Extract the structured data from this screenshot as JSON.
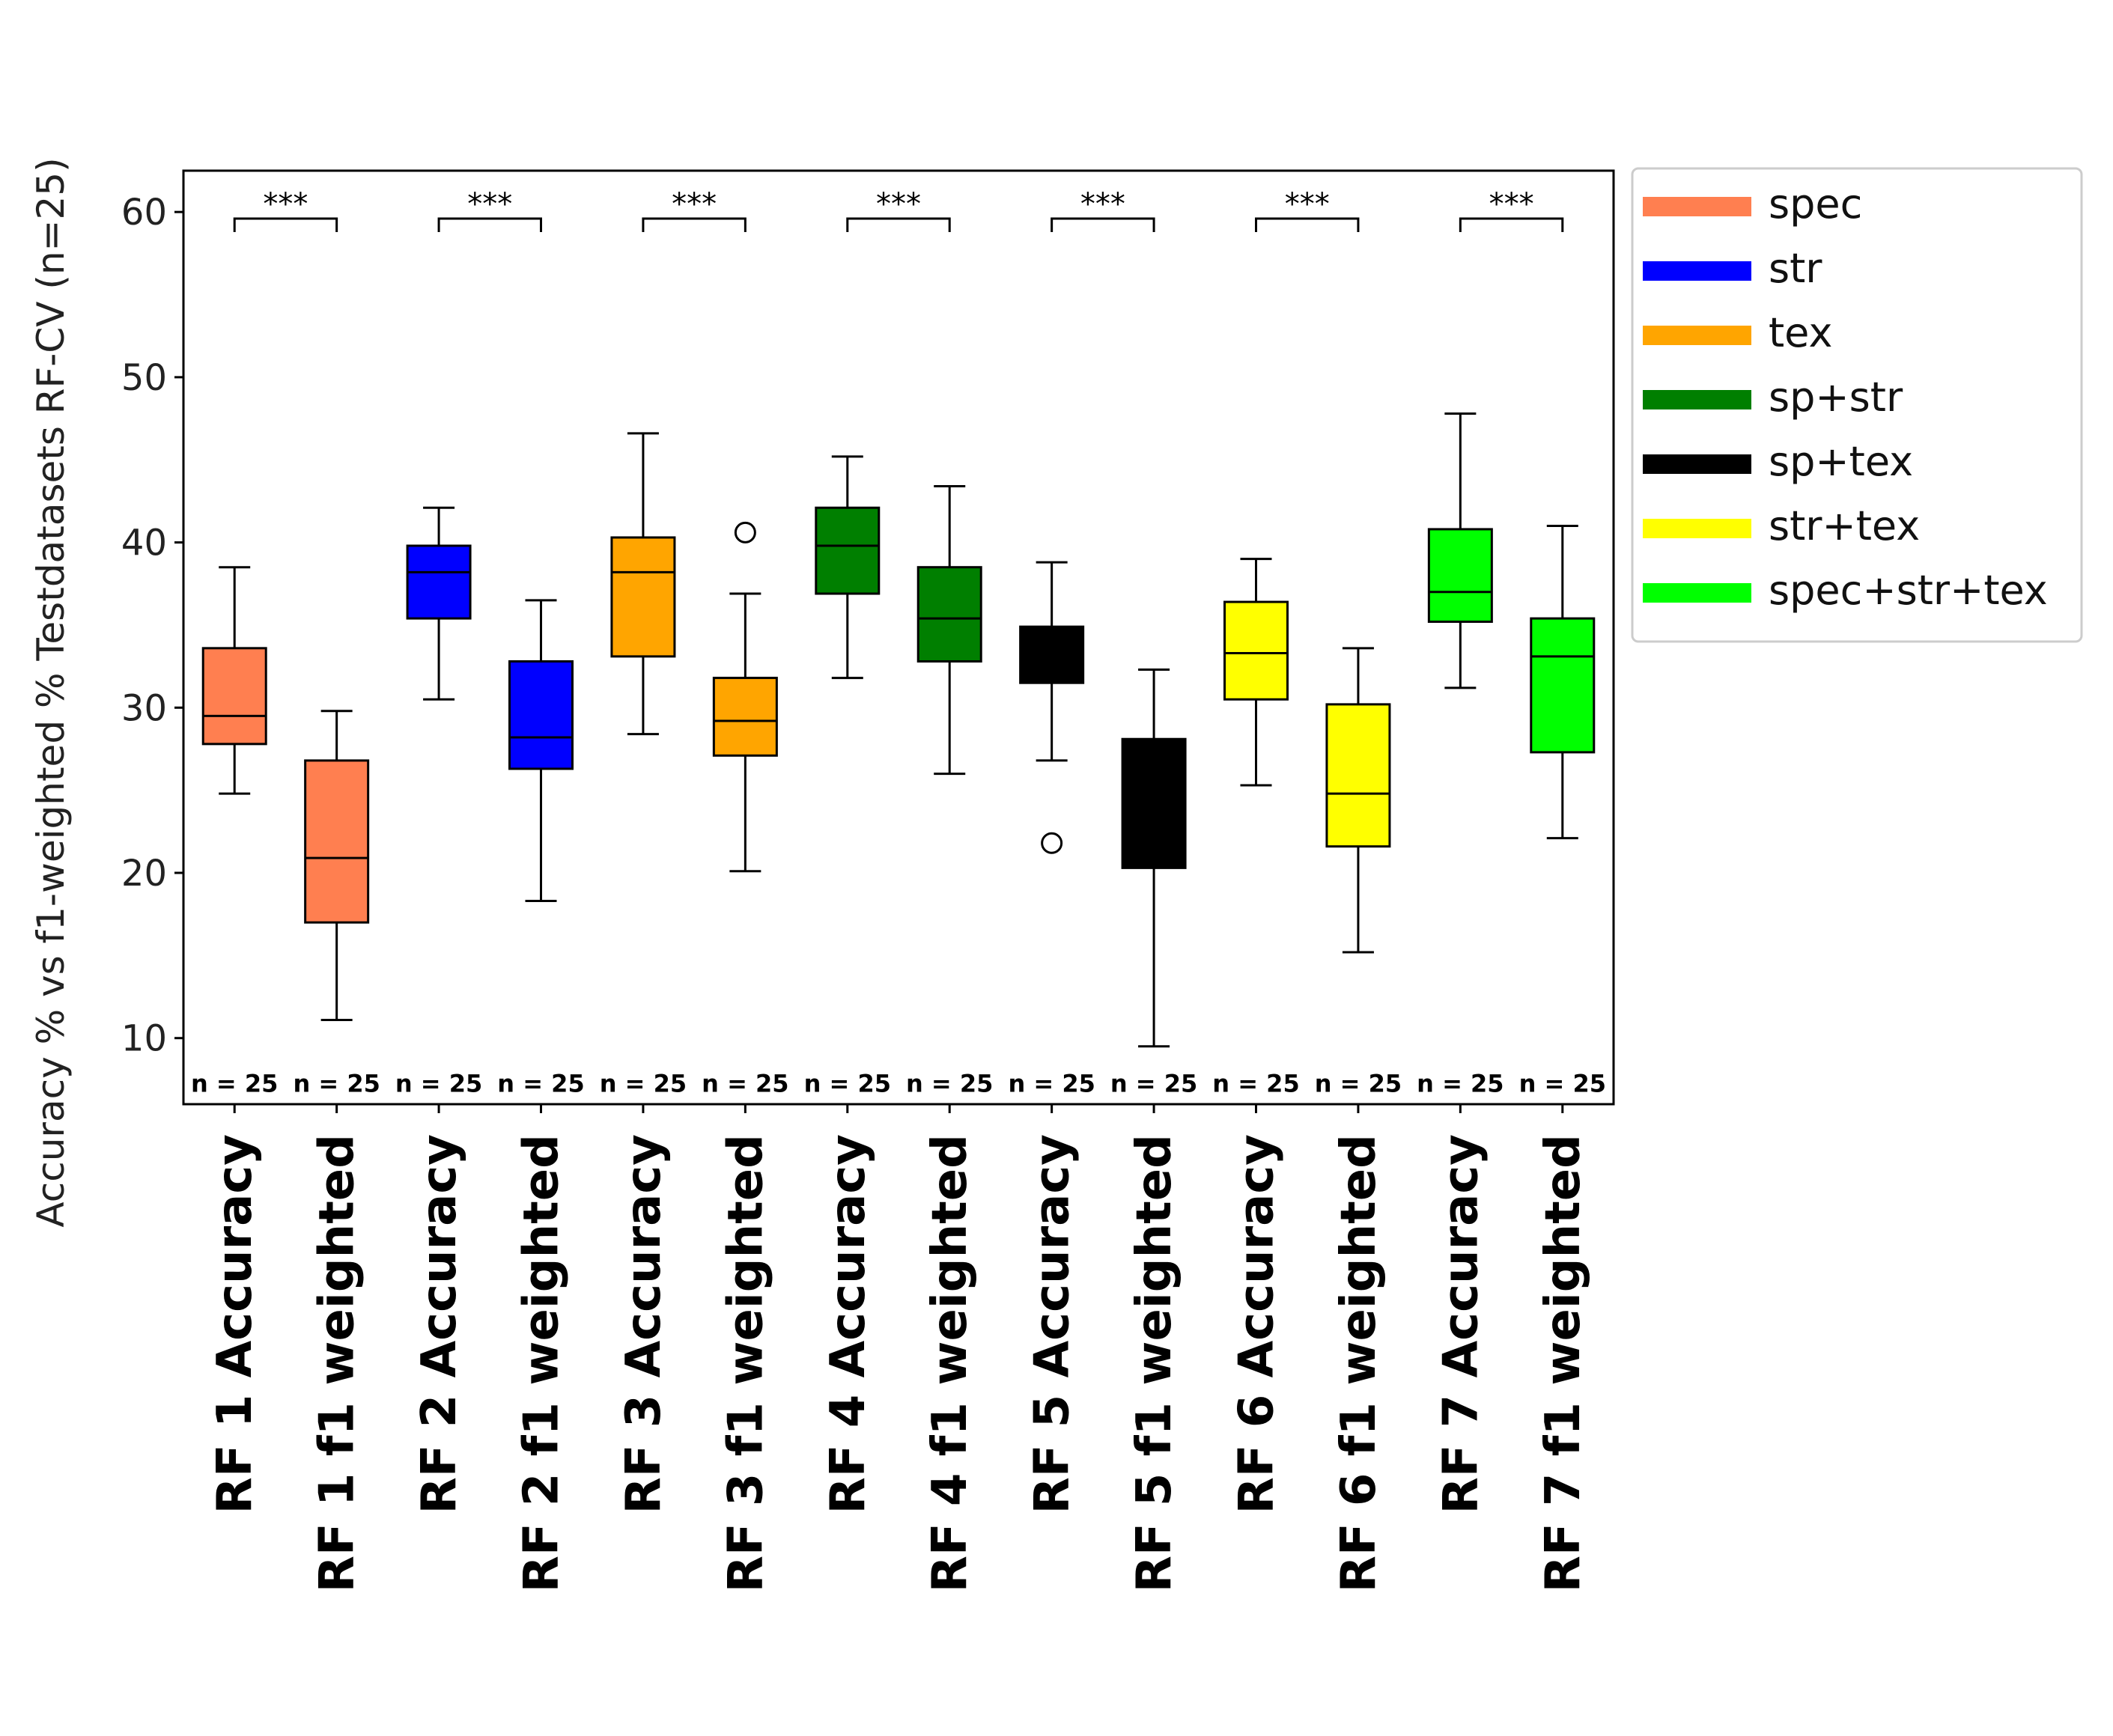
{
  "colors": {
    "spec": "#ff7f50",
    "str": "#0000ff",
    "tex": "#ffa500",
    "sp+str": "#007f00",
    "sp+tex": "#000000",
    "str+tex": "#ffff00",
    "spec+str+tex": "#00ff00"
  },
  "chart_data": {
    "type": "box",
    "title": "",
    "xlabel": "",
    "ylabel": "Accuracy % vs f1-weighted % Testdatasets RF-CV (n=25)",
    "ylim": [
      6,
      62.5
    ],
    "yticks": [
      10,
      20,
      30,
      40,
      50,
      60
    ],
    "grid": false,
    "legend_position": "outside-right",
    "legend": [
      {
        "label": "spec",
        "color": "#ff7f50"
      },
      {
        "label": "str",
        "color": "#0000ff"
      },
      {
        "label": "tex",
        "color": "#ffa500"
      },
      {
        "label": "sp+str",
        "color": "#007f00"
      },
      {
        "label": "sp+tex",
        "color": "#000000"
      },
      {
        "label": "str+tex",
        "color": "#ffff00"
      },
      {
        "label": "spec+str+tex",
        "color": "#00ff00"
      }
    ],
    "categories": [
      "RF 1 Accuracy",
      "RF 1 f1 weighted",
      "RF 2 Accuracy",
      "RF 2 f1 weighted",
      "RF 3 Accuracy",
      "RF 3 f1 weighted",
      "RF 4 Accuracy",
      "RF 4 f1 weighted",
      "RF 5 Accuracy",
      "RF 5 f1 weighted",
      "RF 6 Accuracy",
      "RF 6 f1 weighted",
      "RF 7 Accuracy",
      "RF 7 f1 weighted"
    ],
    "boxes": [
      {
        "group": "spec",
        "whislo": 24.8,
        "q1": 27.8,
        "med": 29.5,
        "q3": 33.6,
        "whishi": 38.5,
        "fliers": []
      },
      {
        "group": "spec",
        "whislo": 11.1,
        "q1": 17.0,
        "med": 20.9,
        "q3": 26.8,
        "whishi": 29.8,
        "fliers": []
      },
      {
        "group": "str",
        "whislo": 30.5,
        "q1": 35.4,
        "med": 38.2,
        "q3": 39.8,
        "whishi": 42.1,
        "fliers": []
      },
      {
        "group": "str",
        "whislo": 18.3,
        "q1": 26.3,
        "med": 28.2,
        "q3": 32.8,
        "whishi": 36.5,
        "fliers": []
      },
      {
        "group": "tex",
        "whislo": 28.4,
        "q1": 33.1,
        "med": 38.2,
        "q3": 40.3,
        "whishi": 46.6,
        "fliers": []
      },
      {
        "group": "tex",
        "whislo": 20.1,
        "q1": 27.1,
        "med": 29.2,
        "q3": 31.8,
        "whishi": 36.9,
        "fliers": [
          40.6
        ]
      },
      {
        "group": "sp+str",
        "whislo": 31.8,
        "q1": 36.9,
        "med": 39.8,
        "q3": 42.1,
        "whishi": 45.2,
        "fliers": []
      },
      {
        "group": "sp+str",
        "whislo": 26.0,
        "q1": 32.8,
        "med": 35.4,
        "q3": 38.5,
        "whishi": 43.4,
        "fliers": []
      },
      {
        "group": "sp+tex",
        "whislo": 26.8,
        "q1": 31.5,
        "med": 33.1,
        "q3": 34.9,
        "whishi": 38.8,
        "fliers": [
          21.8
        ]
      },
      {
        "group": "sp+tex",
        "whislo": 9.5,
        "q1": 20.3,
        "med": 23.7,
        "q3": 28.1,
        "whishi": 32.3,
        "fliers": []
      },
      {
        "group": "str+tex",
        "whislo": 25.3,
        "q1": 30.5,
        "med": 33.3,
        "q3": 36.4,
        "whishi": 39.0,
        "fliers": []
      },
      {
        "group": "str+tex",
        "whislo": 15.2,
        "q1": 21.6,
        "med": 24.8,
        "q3": 30.2,
        "whishi": 33.6,
        "fliers": []
      },
      {
        "group": "spec+str+tex",
        "whislo": 31.2,
        "q1": 35.2,
        "med": 37.0,
        "q3": 40.8,
        "whishi": 47.8,
        "fliers": []
      },
      {
        "group": "spec+str+tex",
        "whislo": 22.1,
        "q1": 27.3,
        "med": 33.1,
        "q3": 35.4,
        "whishi": 41.0,
        "fliers": []
      }
    ],
    "sample_size_labels": [
      "n = 25",
      "n = 25",
      "n = 25",
      "n = 25",
      "n = 25",
      "n = 25",
      "n = 25",
      "n = 25",
      "n = 25",
      "n = 25",
      "n = 25",
      "n = 25",
      "n = 25",
      "n = 25"
    ],
    "significance": [
      {
        "pair": [
          0,
          1
        ],
        "label": "***",
        "y": 59.6
      },
      {
        "pair": [
          2,
          3
        ],
        "label": "***",
        "y": 59.6
      },
      {
        "pair": [
          4,
          5
        ],
        "label": "***",
        "y": 59.6
      },
      {
        "pair": [
          6,
          7
        ],
        "label": "***",
        "y": 59.6
      },
      {
        "pair": [
          8,
          9
        ],
        "label": "***",
        "y": 59.6
      },
      {
        "pair": [
          10,
          11
        ],
        "label": "***",
        "y": 59.6
      },
      {
        "pair": [
          12,
          13
        ],
        "label": "***",
        "y": 59.6
      }
    ]
  }
}
